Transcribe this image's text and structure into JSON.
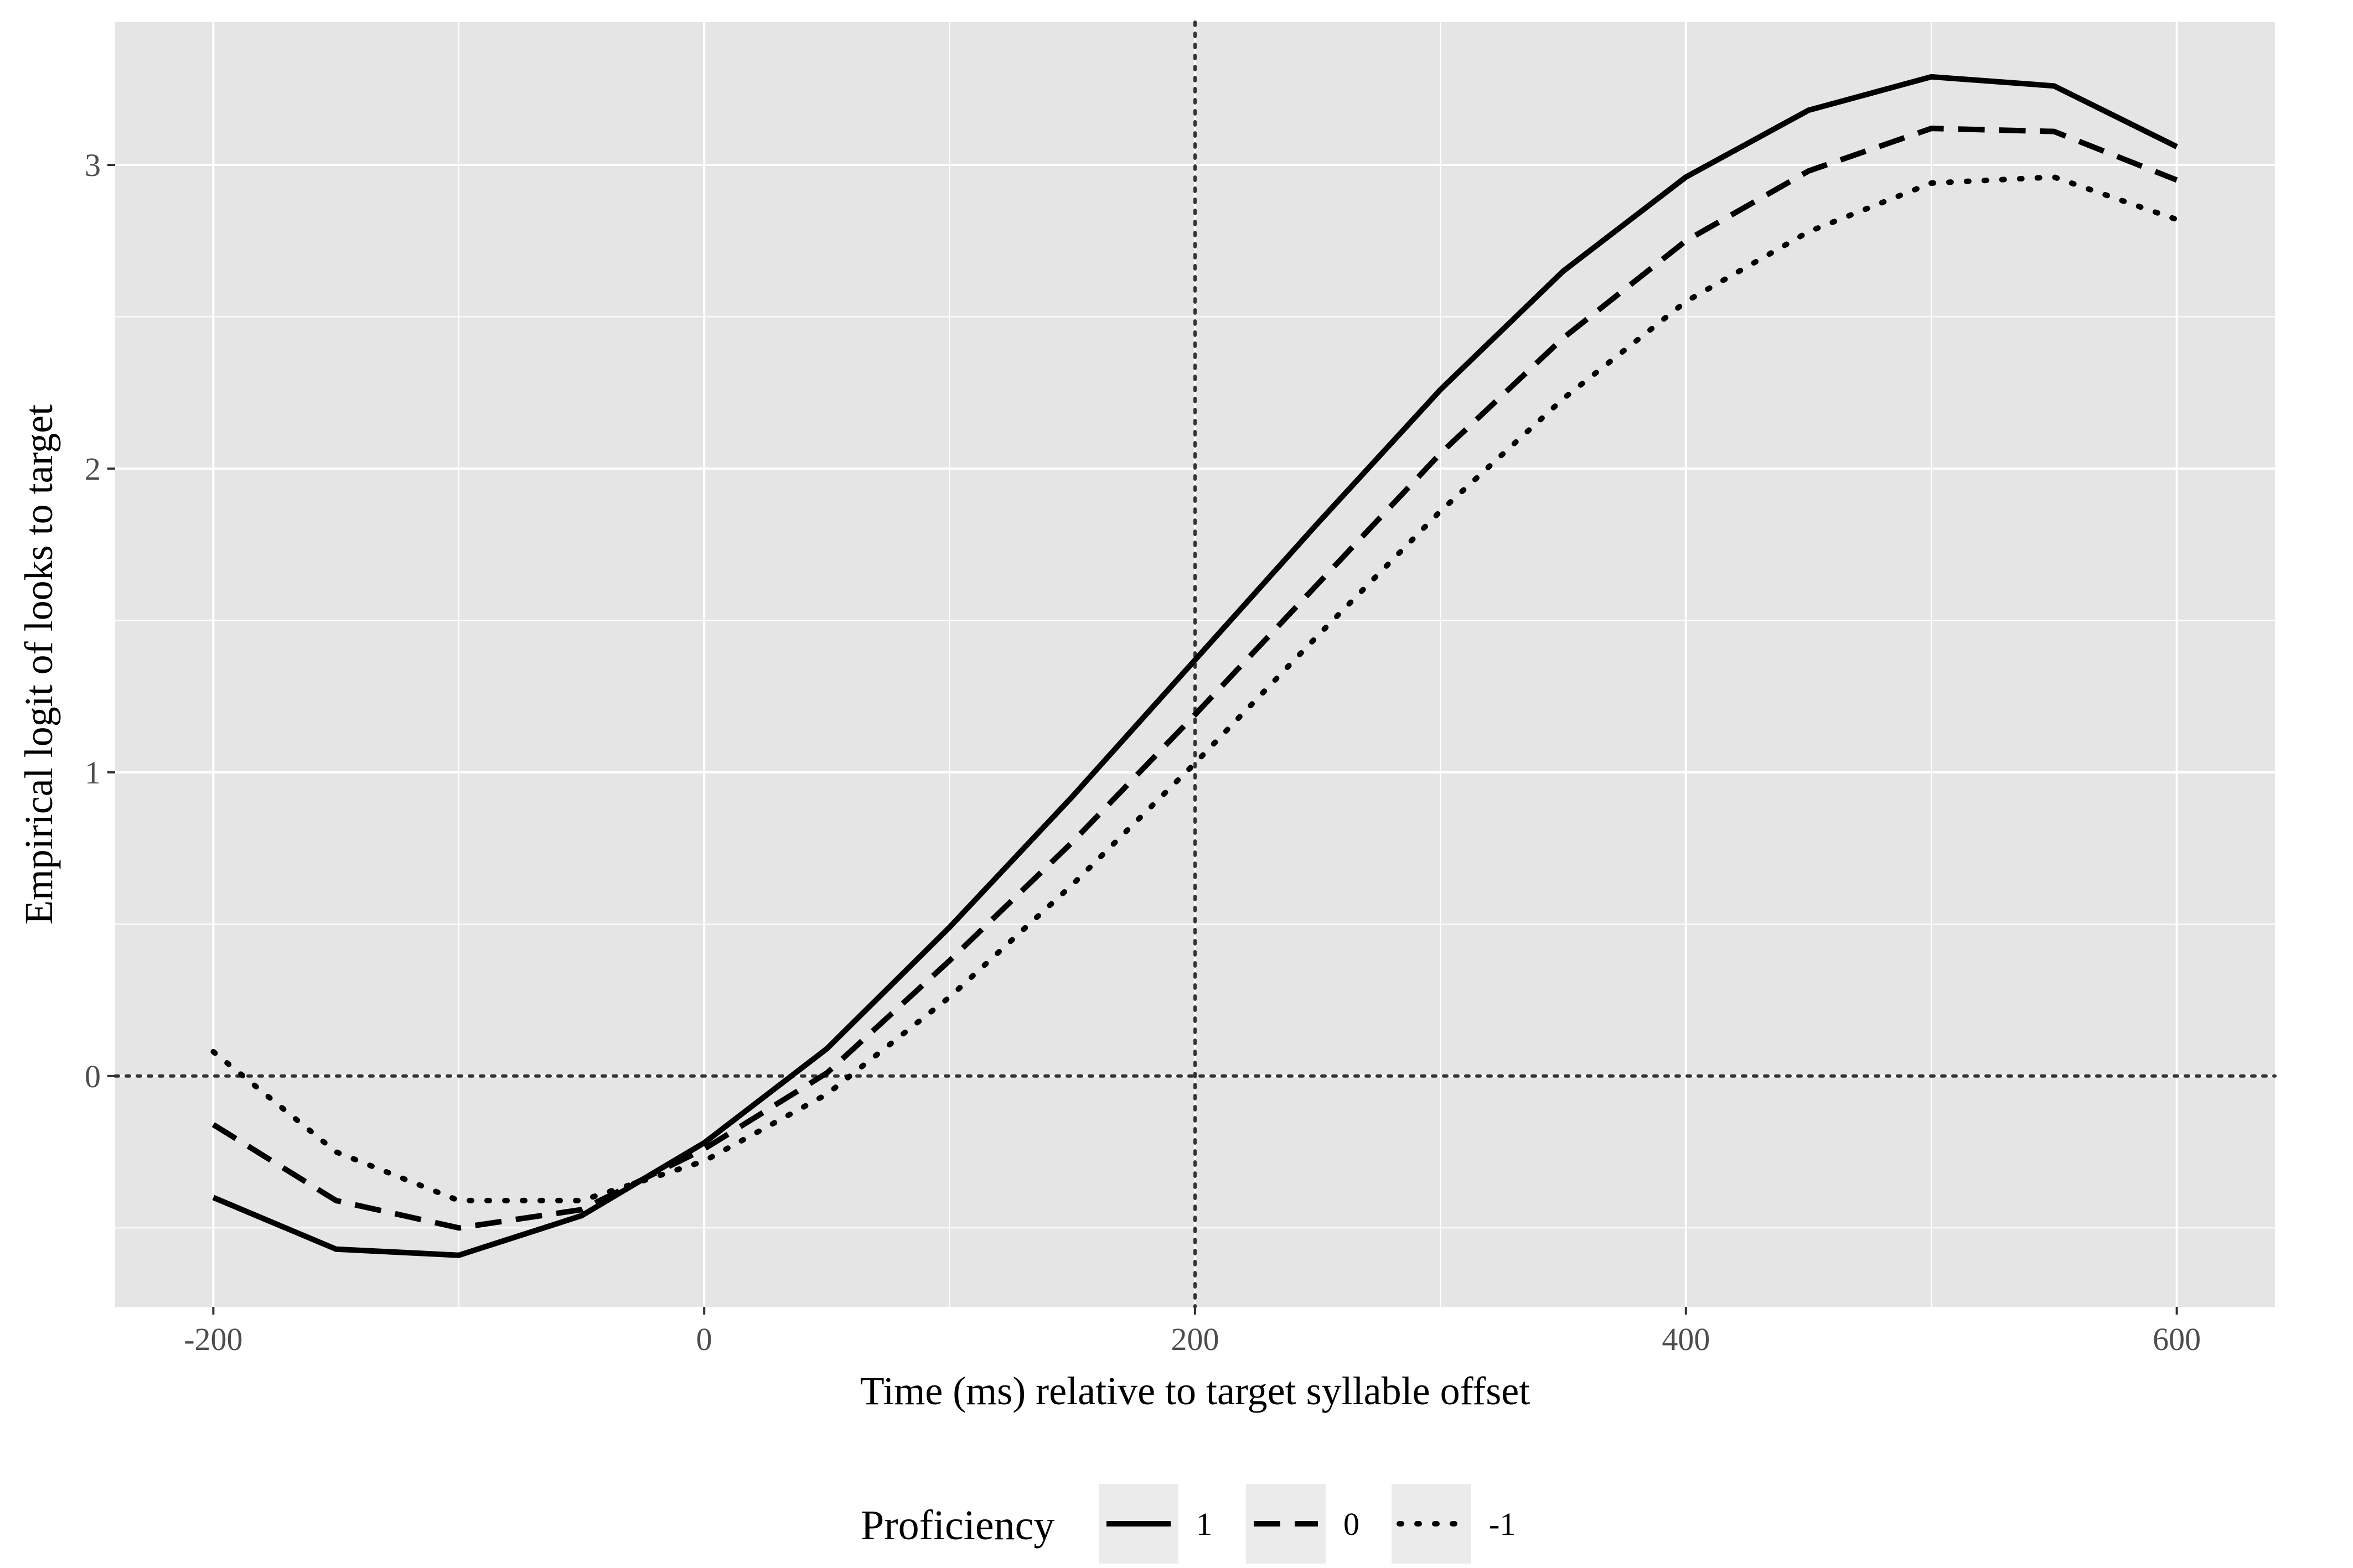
{
  "chart_data": {
    "type": "line",
    "xlabel": "Time (ms) relative to target syllable offset",
    "ylabel": "Empirical logit of looks to target",
    "xlim": [
      -240,
      640
    ],
    "ylim": [
      -0.76,
      3.47
    ],
    "x_ticks": [
      -200,
      0,
      200,
      400,
      600
    ],
    "y_ticks": [
      0,
      1,
      2,
      3
    ],
    "x_tick_labels": [
      "-200",
      "0",
      "200",
      "400",
      "600"
    ],
    "y_tick_labels": [
      "0",
      "1",
      "2",
      "3"
    ],
    "grid": true,
    "reference_lines": [
      {
        "axis": "y",
        "value": 0,
        "style": "dotted"
      },
      {
        "axis": "x",
        "value": 200,
        "style": "dotted"
      }
    ],
    "legend": {
      "title": "Proficiency",
      "position": "bottom",
      "entries": [
        "1",
        "0",
        "-1"
      ]
    },
    "x": [
      -200,
      -150,
      -100,
      -50,
      0,
      50,
      100,
      150,
      200,
      250,
      300,
      350,
      400,
      450,
      500,
      550,
      600
    ],
    "series": [
      {
        "name": "1",
        "dash": "solid",
        "values": [
          -0.4,
          -0.57,
          -0.59,
          -0.46,
          -0.22,
          0.09,
          0.49,
          0.92,
          1.37,
          1.82,
          2.26,
          2.65,
          2.96,
          3.18,
          3.29,
          3.26,
          3.06
        ]
      },
      {
        "name": "0",
        "dash": "dashed",
        "values": [
          -0.16,
          -0.41,
          -0.5,
          -0.44,
          -0.24,
          0.01,
          0.38,
          0.77,
          1.19,
          1.62,
          2.05,
          2.43,
          2.75,
          2.98,
          3.12,
          3.11,
          2.95
        ]
      },
      {
        "name": "-1",
        "dash": "dotted",
        "values": [
          0.08,
          -0.25,
          -0.41,
          -0.41,
          -0.28,
          -0.06,
          0.26,
          0.63,
          1.03,
          1.45,
          1.86,
          2.23,
          2.55,
          2.78,
          2.94,
          2.96,
          2.82
        ]
      }
    ]
  },
  "colors": {
    "panel": "#e5e5e5",
    "grid": "#ffffff",
    "line": "#000000",
    "legend_key": "#ebebeb"
  }
}
